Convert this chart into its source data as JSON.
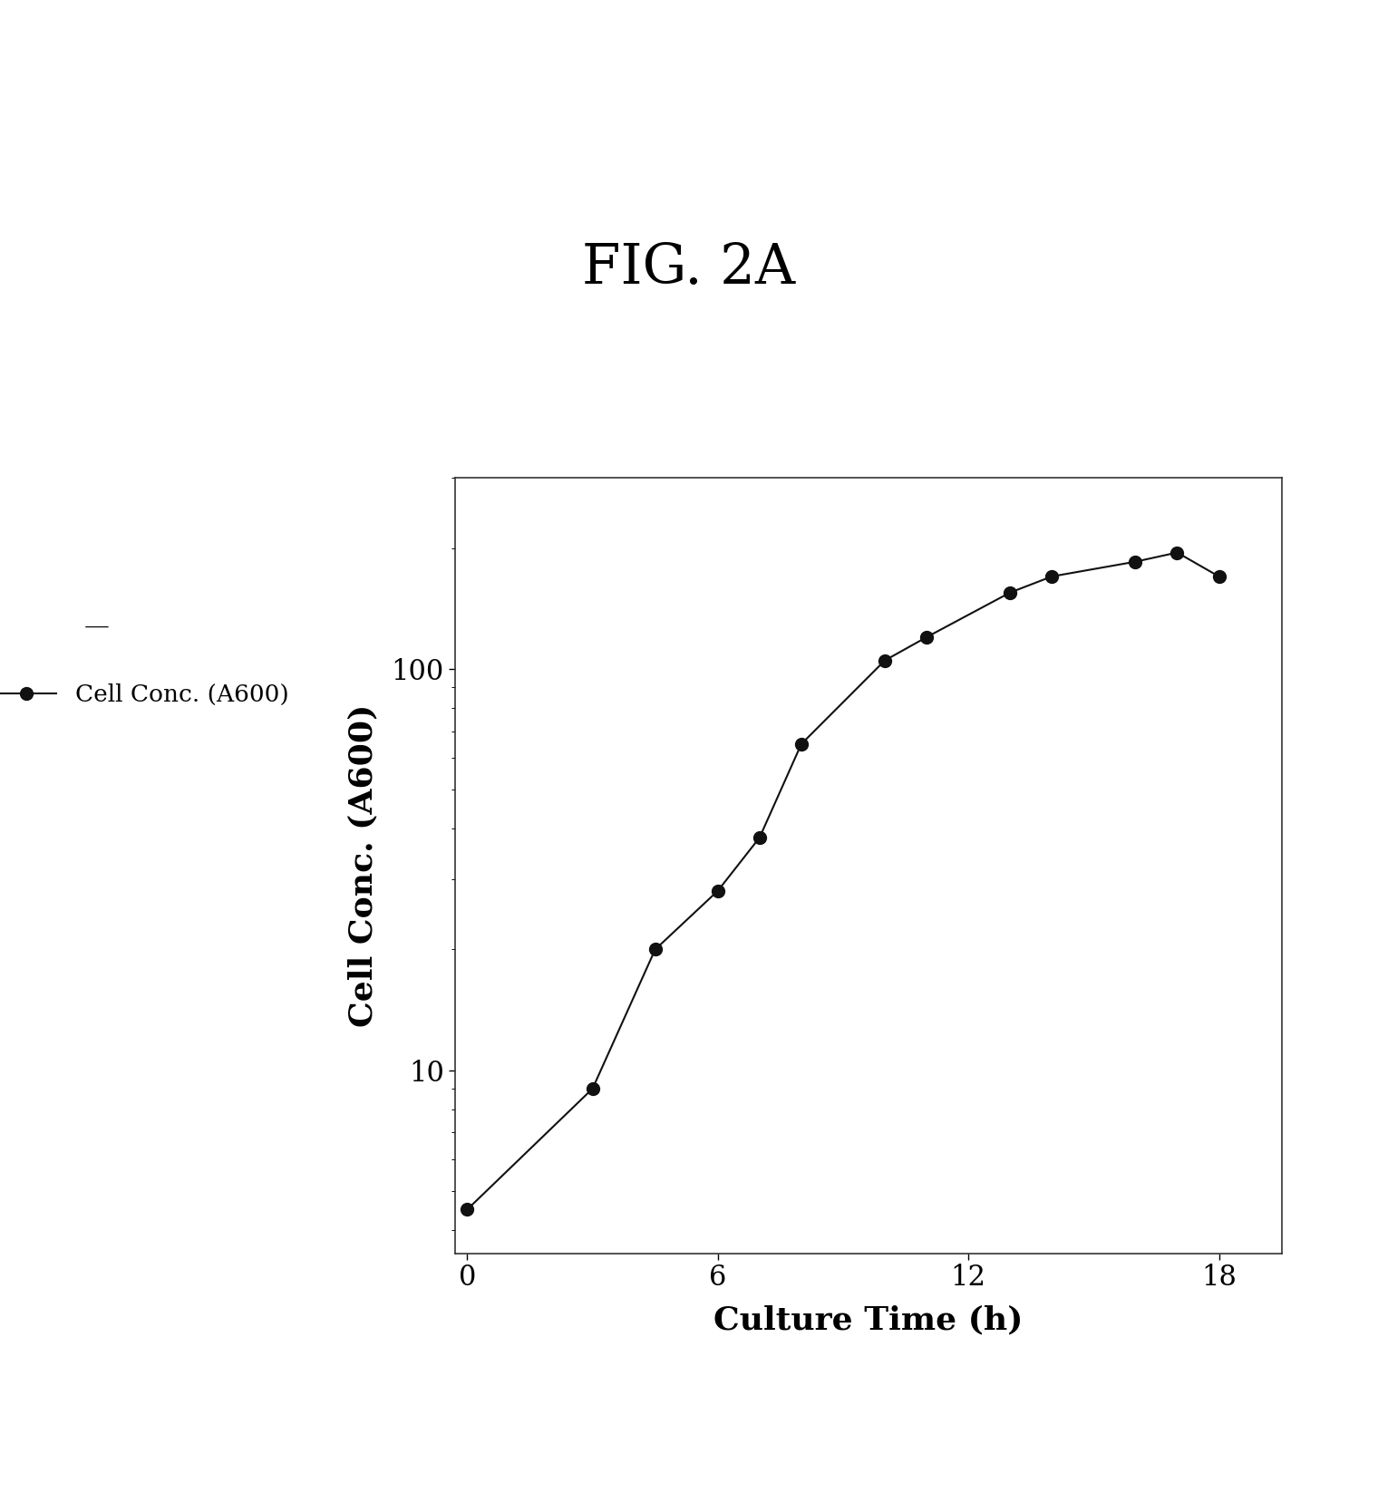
{
  "title": "FIG. 2A",
  "xlabel": "Culture Time (h)",
  "ylabel": "Cell Conc. (A600)",
  "legend_label": "—●— Cell Conc. (A600)",
  "x_data": [
    0,
    3,
    4.5,
    6,
    7,
    8,
    10,
    11,
    13,
    14,
    16,
    17,
    18
  ],
  "y_data": [
    4.5,
    9,
    20,
    28,
    38,
    65,
    105,
    120,
    155,
    170,
    185,
    195,
    170
  ],
  "xlim": [
    -0.3,
    19.5
  ],
  "ylim_log": [
    3.5,
    300
  ],
  "xticks": [
    0,
    6,
    12,
    18
  ],
  "line_color": "#111111",
  "marker_color": "#111111",
  "marker_size": 10,
  "line_width": 1.5,
  "background_color": "#ffffff",
  "title_fontsize": 44,
  "axis_label_fontsize": 26,
  "tick_fontsize": 22,
  "legend_fontsize": 19,
  "fig_background": "#ffffff"
}
